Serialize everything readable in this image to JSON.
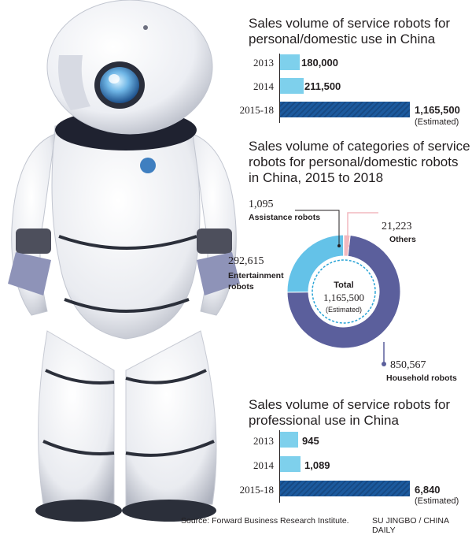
{
  "colors": {
    "light_bar": "#7ed0ec",
    "dark_bar": "#1c5a9e",
    "household": "#5b5f9c",
    "entertainment": "#64c2e8",
    "others": "#f2b8bf",
    "assistance": "#7f7f7f"
  },
  "chart_data": [
    {
      "type": "bar",
      "title": "Sales volume of service robots for personal/domestic use in China",
      "categories": [
        "2013",
        "2014",
        "2015-18"
      ],
      "values": [
        180000,
        211500,
        1165500
      ],
      "labels": [
        "180,000",
        "211,500",
        "1,165,500"
      ],
      "annotation": "(Estimated)"
    },
    {
      "type": "pie",
      "title": "Sales volume of categories of service robots for personal/domestic robots in China, 2015 to 2018",
      "slices": [
        {
          "name": "Household robots",
          "value": 850567,
          "label": "850,567"
        },
        {
          "name": "Entertainment robots",
          "value": 292615,
          "label": "292,615"
        },
        {
          "name": "Assistance robots",
          "value": 1095,
          "label": "1,095"
        },
        {
          "name": "Others",
          "value": 21223,
          "label": "21,223"
        }
      ],
      "center": {
        "title": "Total",
        "value": "1,165,500",
        "note": "(Estimated)"
      }
    },
    {
      "type": "bar",
      "title": "Sales volume of service robots for professional use in China",
      "categories": [
        "2013",
        "2014",
        "2015-18"
      ],
      "values": [
        945,
        1089,
        6840
      ],
      "labels": [
        "945",
        "1,089",
        "6,840"
      ],
      "annotation": "(Estimated)"
    }
  ],
  "footer": {
    "source": "Source: Forward Business Research Institute.",
    "credit": "SU JINGBO / CHINA DAILY"
  }
}
